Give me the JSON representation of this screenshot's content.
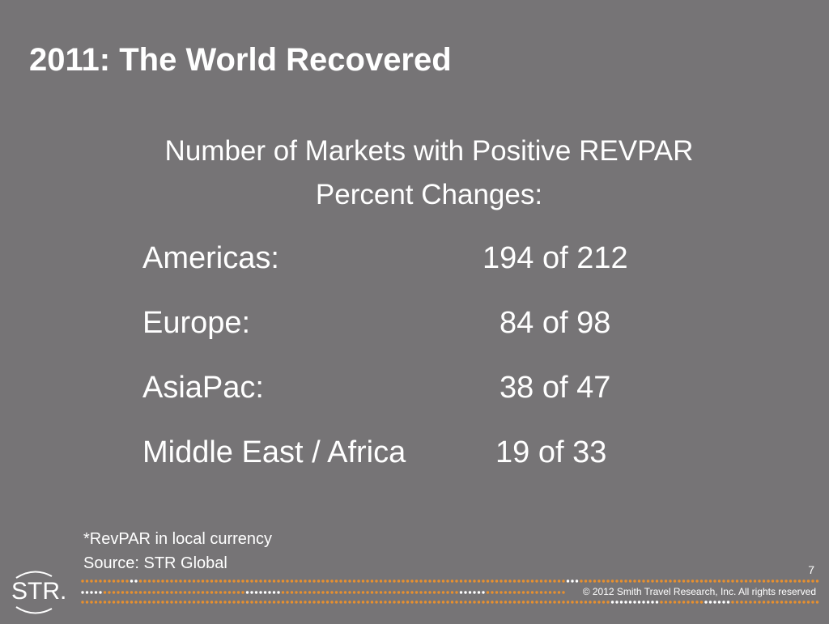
{
  "slide": {
    "title": "2011: The World Recovered",
    "subtitle_line1": "Number of Markets with Positive REVPAR",
    "subtitle_line2": "Percent Changes:",
    "rows": [
      {
        "region": "Americas:",
        "count": "194 of 212"
      },
      {
        "region": "Europe:",
        "count": "84 of 98"
      },
      {
        "region": "AsiaPac:",
        "count": "38 of 47"
      },
      {
        "region": "Middle East / Africa",
        "count": "19 of 33"
      }
    ],
    "footnote_currency": "*RevPAR in local currency",
    "footnote_source": "Source: STR Global",
    "page_number": "7"
  },
  "footer": {
    "logo_text": "STR.",
    "copyright": "© 2012 Smith Travel Research, Inc. All rights reserved"
  },
  "colors": {
    "background": "#767476",
    "text": "#ffffff",
    "accent_orange": "#e8902e"
  }
}
